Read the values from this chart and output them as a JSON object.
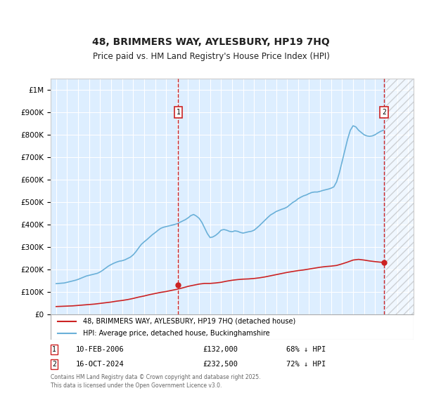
{
  "title": "48, BRIMMERS WAY, AYLESBURY, HP19 7HQ",
  "subtitle": "Price paid vs. HM Land Registry's House Price Index (HPI)",
  "background_color": "#ffffff",
  "chart_bg_color": "#ddeeff",
  "grid_color": "#ffffff",
  "ylim": [
    0,
    1050000
  ],
  "xlim": [
    1994.5,
    2027.5
  ],
  "yticks": [
    0,
    100000,
    200000,
    300000,
    400000,
    500000,
    600000,
    700000,
    800000,
    900000,
    1000000
  ],
  "ytick_labels": [
    "£0",
    "£100K",
    "£200K",
    "£300K",
    "£400K",
    "£500K",
    "£600K",
    "£700K",
    "£800K",
    "£900K",
    "£1M"
  ],
  "xticks": [
    1995,
    1996,
    1997,
    1998,
    1999,
    2000,
    2001,
    2002,
    2003,
    2004,
    2005,
    2006,
    2007,
    2008,
    2009,
    2010,
    2011,
    2012,
    2013,
    2014,
    2015,
    2016,
    2017,
    2018,
    2019,
    2020,
    2021,
    2022,
    2023,
    2024,
    2025,
    2026,
    2027
  ],
  "hpi_color": "#6ab0d8",
  "price_color": "#cc2222",
  "transaction1": {
    "date": "10-FEB-2006",
    "price": 132000,
    "pct": "68% ↓ HPI",
    "year": 2006.1
  },
  "transaction2": {
    "date": "16-OCT-2024",
    "price": 232500,
    "pct": "72% ↓ HPI",
    "year": 2024.8
  },
  "future_start": 2025.0,
  "legend_label1": "48, BRIMMERS WAY, AYLESBURY, HP19 7HQ (detached house)",
  "legend_label2": "HPI: Average price, detached house, Buckinghamshire",
  "footer": "Contains HM Land Registry data © Crown copyright and database right 2025.\nThis data is licensed under the Open Government Licence v3.0.",
  "hpi_data": {
    "years": [
      1995.0,
      1995.25,
      1995.5,
      1995.75,
      1996.0,
      1996.25,
      1996.5,
      1996.75,
      1997.0,
      1997.25,
      1997.5,
      1997.75,
      1998.0,
      1998.25,
      1998.5,
      1998.75,
      1999.0,
      1999.25,
      1999.5,
      1999.75,
      2000.0,
      2000.25,
      2000.5,
      2000.75,
      2001.0,
      2001.25,
      2001.5,
      2001.75,
      2002.0,
      2002.25,
      2002.5,
      2002.75,
      2003.0,
      2003.25,
      2003.5,
      2003.75,
      2004.0,
      2004.25,
      2004.5,
      2004.75,
      2005.0,
      2005.25,
      2005.5,
      2005.75,
      2006.0,
      2006.25,
      2006.5,
      2006.75,
      2007.0,
      2007.25,
      2007.5,
      2007.75,
      2008.0,
      2008.25,
      2008.5,
      2008.75,
      2009.0,
      2009.25,
      2009.5,
      2009.75,
      2010.0,
      2010.25,
      2010.5,
      2010.75,
      2011.0,
      2011.25,
      2011.5,
      2011.75,
      2012.0,
      2012.25,
      2012.5,
      2012.75,
      2013.0,
      2013.25,
      2013.5,
      2013.75,
      2014.0,
      2014.25,
      2014.5,
      2014.75,
      2015.0,
      2015.25,
      2015.5,
      2015.75,
      2016.0,
      2016.25,
      2016.5,
      2016.75,
      2017.0,
      2017.25,
      2017.5,
      2017.75,
      2018.0,
      2018.25,
      2018.5,
      2018.75,
      2019.0,
      2019.25,
      2019.5,
      2019.75,
      2020.0,
      2020.25,
      2020.5,
      2020.75,
      2021.0,
      2021.25,
      2021.5,
      2021.75,
      2022.0,
      2022.25,
      2022.5,
      2022.75,
      2023.0,
      2023.25,
      2023.5,
      2023.75,
      2024.0,
      2024.25,
      2024.5,
      2024.75
    ],
    "values": [
      137000,
      138000,
      139000,
      140000,
      143000,
      146000,
      149000,
      152000,
      156000,
      161000,
      166000,
      171000,
      174000,
      177000,
      180000,
      183000,
      189000,
      197000,
      206000,
      215000,
      222000,
      228000,
      233000,
      237000,
      239000,
      243000,
      249000,
      255000,
      265000,
      279000,
      296000,
      312000,
      323000,
      333000,
      344000,
      355000,
      364000,
      374000,
      383000,
      388000,
      391000,
      394000,
      397000,
      400000,
      404000,
      410000,
      416000,
      422000,
      430000,
      440000,
      445000,
      438000,
      428000,
      410000,
      385000,
      360000,
      342000,
      345000,
      352000,
      362000,
      375000,
      378000,
      375000,
      370000,
      368000,
      372000,
      370000,
      365000,
      362000,
      365000,
      368000,
      370000,
      375000,
      385000,
      396000,
      408000,
      420000,
      432000,
      443000,
      450000,
      458000,
      463000,
      468000,
      472000,
      478000,
      488000,
      498000,
      505000,
      515000,
      522000,
      528000,
      532000,
      538000,
      543000,
      545000,
      545000,
      548000,
      552000,
      555000,
      558000,
      562000,
      568000,
      590000,
      630000,
      680000,
      730000,
      780000,
      820000,
      840000,
      835000,
      820000,
      810000,
      800000,
      795000,
      793000,
      795000,
      800000,
      808000,
      815000,
      820000
    ]
  },
  "price_data": {
    "years": [
      1995.0,
      1995.5,
      1996.0,
      1996.5,
      1997.0,
      1997.5,
      1998.0,
      1998.5,
      1999.0,
      1999.5,
      2000.0,
      2000.5,
      2001.0,
      2001.5,
      2002.0,
      2002.5,
      2003.0,
      2003.5,
      2004.0,
      2004.5,
      2005.0,
      2005.5,
      2006.0,
      2006.5,
      2007.0,
      2007.5,
      2008.0,
      2008.5,
      2009.0,
      2009.5,
      2010.0,
      2010.5,
      2011.0,
      2011.5,
      2012.0,
      2012.5,
      2013.0,
      2013.5,
      2014.0,
      2014.5,
      2015.0,
      2015.5,
      2016.0,
      2016.5,
      2017.0,
      2017.5,
      2018.0,
      2018.5,
      2019.0,
      2019.5,
      2020.0,
      2020.5,
      2021.0,
      2021.5,
      2022.0,
      2022.5,
      2023.0,
      2023.5,
      2024.0,
      2024.5,
      2024.75
    ],
    "values": [
      35000,
      36000,
      37000,
      38000,
      40000,
      42000,
      44000,
      46000,
      49000,
      52000,
      55000,
      59000,
      62000,
      66000,
      71000,
      77000,
      82000,
      88000,
      93000,
      98000,
      102000,
      107000,
      112000,
      118000,
      125000,
      130000,
      135000,
      138000,
      138000,
      140000,
      143000,
      148000,
      152000,
      155000,
      157000,
      158000,
      160000,
      163000,
      167000,
      172000,
      177000,
      182000,
      187000,
      191000,
      195000,
      198000,
      202000,
      206000,
      210000,
      213000,
      215000,
      218000,
      225000,
      233000,
      242000,
      245000,
      242000,
      238000,
      235000,
      232500,
      232500
    ]
  }
}
